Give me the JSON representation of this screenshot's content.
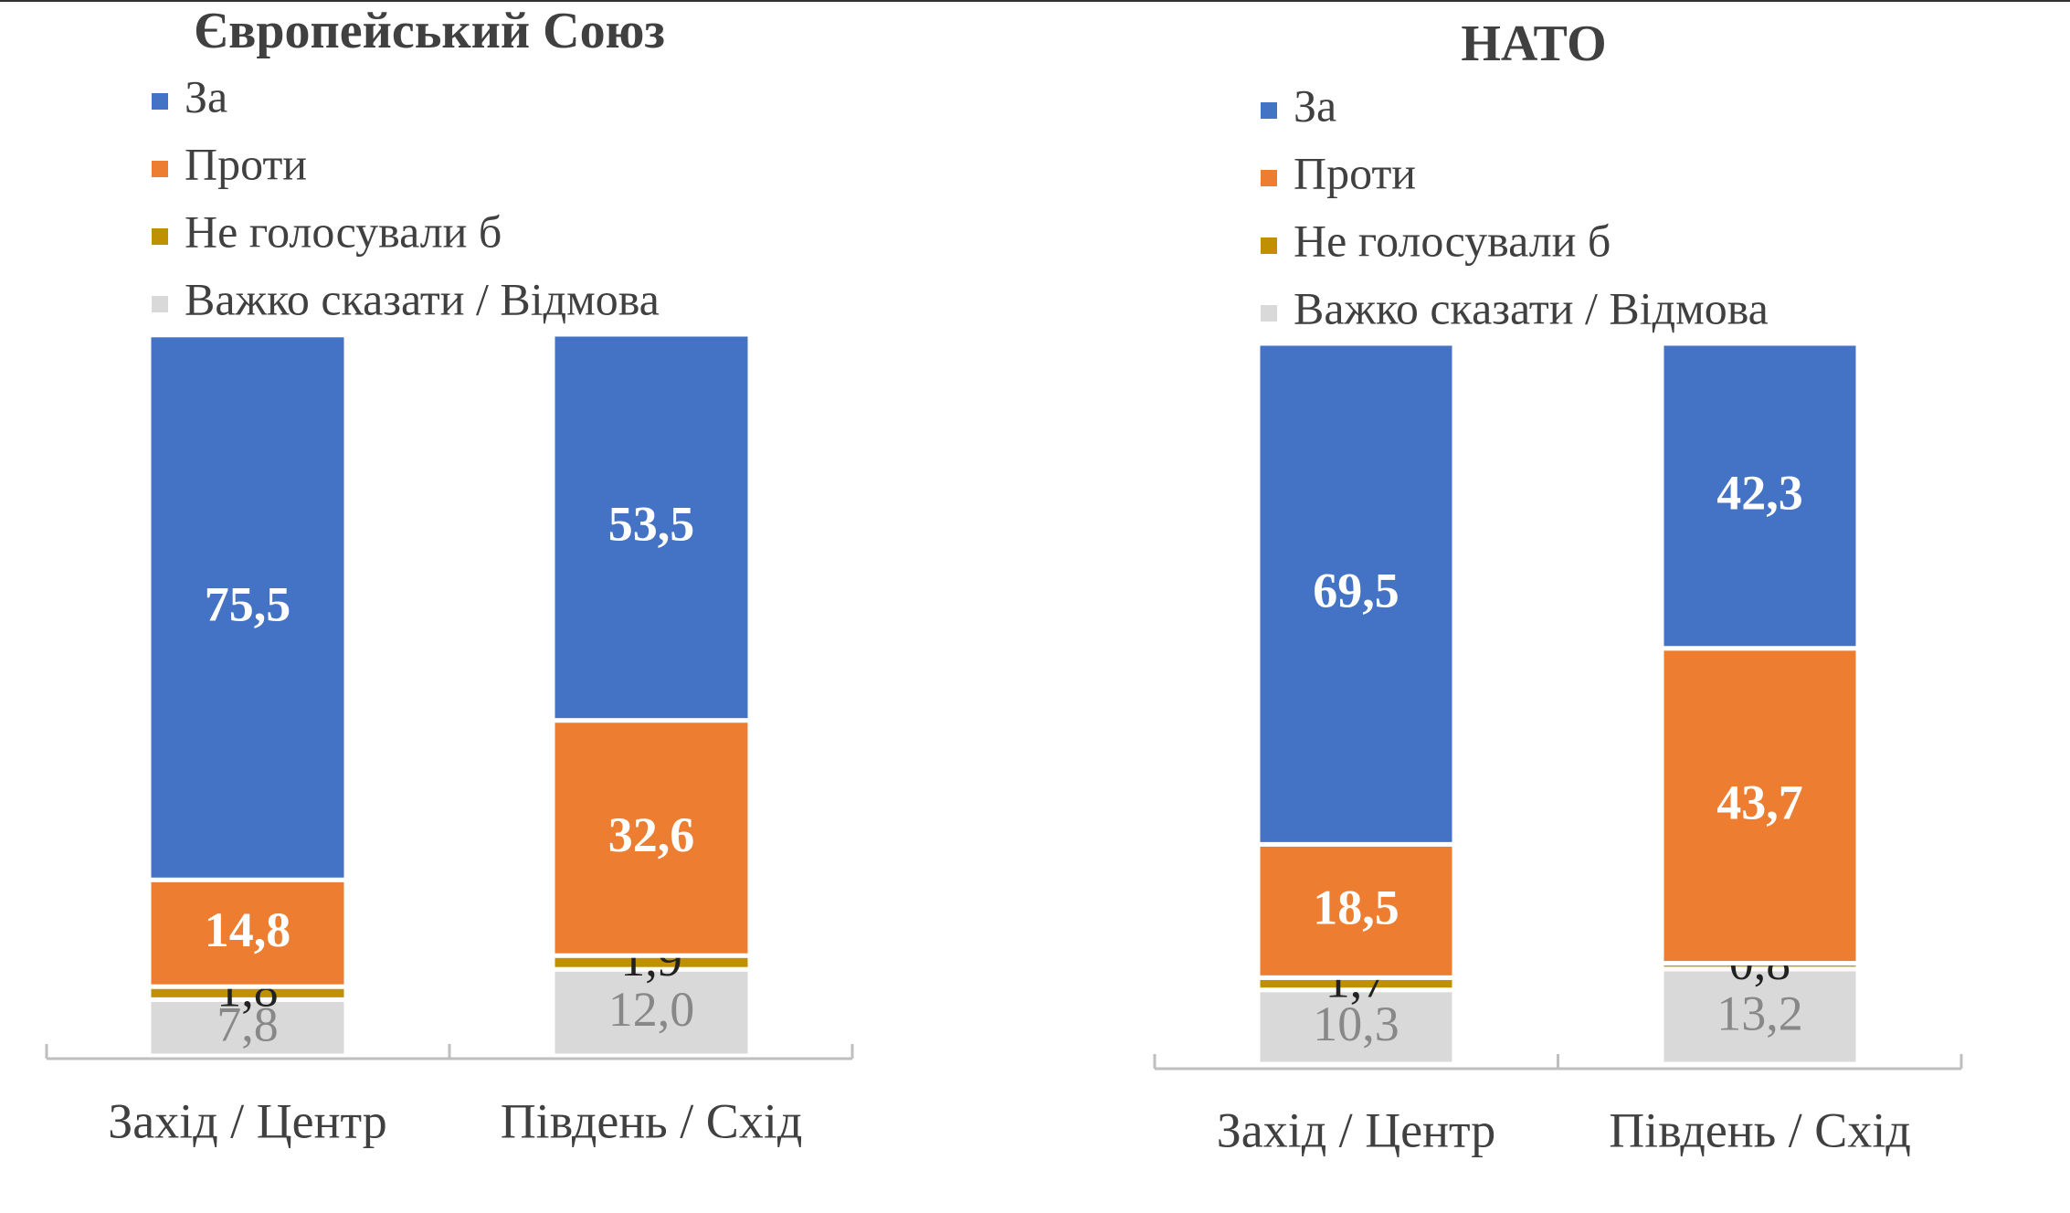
{
  "chart_data": [
    {
      "type": "stacked-bar",
      "title": "Європейський Союз",
      "categories": [
        "Захід / Центр",
        "Південь / Схід"
      ],
      "ylim": [
        0,
        100
      ],
      "series": [
        {
          "name": "За",
          "color": "#4472c4",
          "values": [
            75.5,
            53.5
          ],
          "value_labels": [
            "75,5",
            "53,5"
          ]
        },
        {
          "name": "Проти",
          "color": "#ed7d31",
          "values": [
            14.8,
            32.6
          ],
          "value_labels": [
            "14,8",
            "32,6"
          ]
        },
        {
          "name": "Не голосували б",
          "color": "#bf9000",
          "values": [
            1.8,
            1.9
          ],
          "value_labels": [
            "1,8",
            "1,9"
          ]
        },
        {
          "name": "Важко сказати / Відмова",
          "color": "#d9d9d9",
          "values": [
            7.8,
            12.0
          ],
          "value_labels": [
            "7,8",
            "12,0"
          ]
        }
      ]
    },
    {
      "type": "stacked-bar",
      "title": "НАТО",
      "categories": [
        "Захід / Центр",
        "Південь / Схід"
      ],
      "ylim": [
        0,
        100
      ],
      "series": [
        {
          "name": "За",
          "color": "#4472c4",
          "values": [
            69.5,
            42.3
          ],
          "value_labels": [
            "69,5",
            "42,3"
          ]
        },
        {
          "name": "Проти",
          "color": "#ed7d31",
          "values": [
            18.5,
            43.7
          ],
          "value_labels": [
            "18,5",
            "43,7"
          ]
        },
        {
          "name": "Не голосували б",
          "color": "#bf9000",
          "values": [
            1.7,
            0.8
          ],
          "value_labels": [
            "1,7",
            "0,8"
          ]
        },
        {
          "name": "Важко сказати / Відмова",
          "color": "#d9d9d9",
          "values": [
            10.3,
            13.2
          ],
          "value_labels": [
            "10,3",
            "13,2"
          ]
        }
      ]
    }
  ]
}
